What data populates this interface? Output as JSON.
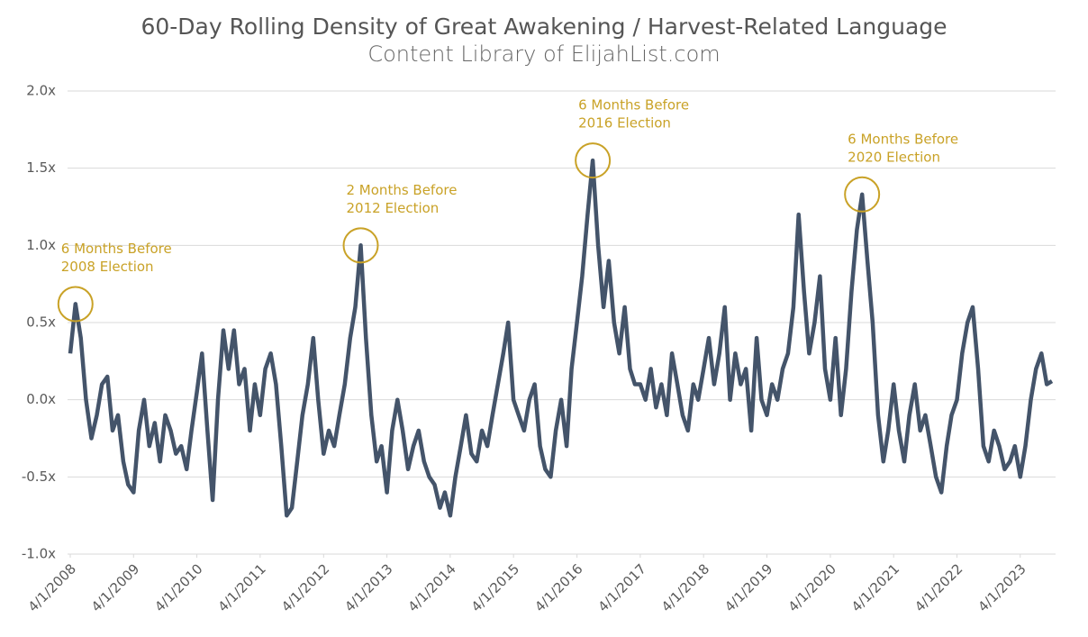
{
  "chart_data": {
    "type": "line",
    "title": "60-Day Rolling Density of Great Awakening / Harvest-Related Language",
    "subtitle": "Content Library of ElijahList.com",
    "color": "#44546a",
    "annotation_color": "#c9a227",
    "grid": true,
    "x": [
      "4/1/2008",
      "5/1/2008",
      "6/1/2008",
      "7/1/2008",
      "8/1/2008",
      "9/1/2008",
      "10/1/2008",
      "11/1/2008",
      "12/1/2008",
      "1/1/2009",
      "2/1/2009",
      "3/1/2009",
      "4/1/2009",
      "5/1/2009",
      "6/1/2009",
      "7/1/2009",
      "8/1/2009",
      "9/1/2009",
      "10/1/2009",
      "11/1/2009",
      "12/1/2009",
      "1/1/2010",
      "2/1/2010",
      "3/1/2010",
      "4/1/2010",
      "5/1/2010",
      "6/1/2010",
      "7/1/2010",
      "8/1/2010",
      "9/1/2010",
      "10/1/2010",
      "11/1/2010",
      "12/1/2010",
      "1/1/2011",
      "2/1/2011",
      "3/1/2011",
      "4/1/2011",
      "5/1/2011",
      "6/1/2011",
      "7/1/2011",
      "8/1/2011",
      "9/1/2011",
      "10/1/2011",
      "11/1/2011",
      "12/1/2011",
      "1/1/2012",
      "2/1/2012",
      "3/1/2012",
      "4/1/2012",
      "5/1/2012",
      "6/1/2012",
      "7/1/2012",
      "8/1/2012",
      "9/1/2012",
      "10/1/2012",
      "11/1/2012",
      "12/1/2012",
      "1/1/2013",
      "2/1/2013",
      "3/1/2013",
      "4/1/2013",
      "5/1/2013",
      "6/1/2013",
      "7/1/2013",
      "8/1/2013",
      "9/1/2013",
      "10/1/2013",
      "11/1/2013",
      "12/1/2013",
      "1/1/2014",
      "2/1/2014",
      "3/1/2014",
      "4/1/2014",
      "5/1/2014",
      "6/1/2014",
      "7/1/2014",
      "8/1/2014",
      "9/1/2014",
      "10/1/2014",
      "11/1/2014",
      "12/1/2014",
      "1/1/2015",
      "2/1/2015",
      "3/1/2015",
      "4/1/2015",
      "5/1/2015",
      "6/1/2015",
      "7/1/2015",
      "8/1/2015",
      "9/1/2015",
      "10/1/2015",
      "11/1/2015",
      "12/1/2015",
      "1/1/2016",
      "2/1/2016",
      "3/1/2016",
      "4/1/2016",
      "5/1/2016",
      "6/1/2016",
      "7/1/2016",
      "8/1/2016",
      "9/1/2016",
      "10/1/2016",
      "11/1/2016",
      "12/1/2016",
      "1/1/2017",
      "2/1/2017",
      "3/1/2017",
      "4/1/2017",
      "5/1/2017",
      "6/1/2017",
      "7/1/2017",
      "8/1/2017",
      "9/1/2017",
      "10/1/2017",
      "11/1/2017",
      "12/1/2017",
      "1/1/2018",
      "2/1/2018",
      "3/1/2018",
      "4/1/2018",
      "5/1/2018",
      "6/1/2018",
      "7/1/2018",
      "8/1/2018",
      "9/1/2018",
      "10/1/2018",
      "11/1/2018",
      "12/1/2018",
      "1/1/2019",
      "2/1/2019",
      "3/1/2019",
      "4/1/2019",
      "5/1/2019",
      "6/1/2019",
      "7/1/2019",
      "8/1/2019",
      "9/1/2019",
      "10/1/2019",
      "11/1/2019",
      "12/1/2019",
      "1/1/2020",
      "2/1/2020",
      "3/1/2020",
      "4/1/2020",
      "5/1/2020",
      "6/1/2020",
      "7/1/2020",
      "8/1/2020",
      "9/1/2020",
      "10/1/2020",
      "11/1/2020",
      "12/1/2020",
      "1/1/2021",
      "2/1/2021",
      "3/1/2021",
      "4/1/2021",
      "5/1/2021",
      "6/1/2021",
      "7/1/2021",
      "8/1/2021",
      "9/1/2021",
      "10/1/2021",
      "11/1/2021",
      "12/1/2021",
      "1/1/2022",
      "2/1/2022",
      "3/1/2022",
      "4/1/2022",
      "5/1/2022",
      "6/1/2022",
      "7/1/2022",
      "8/1/2022",
      "9/1/2022",
      "10/1/2022",
      "11/1/2022",
      "12/1/2022",
      "1/1/2023",
      "2/1/2023",
      "3/1/2023",
      "4/1/2023",
      "5/1/2023",
      "6/1/2023",
      "7/1/2023",
      "8/1/2023",
      "9/1/2023",
      "10/1/2023"
    ],
    "values": [
      0.3,
      0.62,
      0.4,
      0.0,
      -0.25,
      -0.1,
      0.1,
      0.15,
      -0.2,
      -0.1,
      -0.4,
      -0.55,
      -0.6,
      -0.2,
      0.0,
      -0.3,
      -0.15,
      -0.4,
      -0.1,
      -0.2,
      -0.35,
      -0.3,
      -0.45,
      -0.2,
      0.05,
      0.3,
      -0.2,
      -0.65,
      0.0,
      0.45,
      0.2,
      0.45,
      0.1,
      0.2,
      -0.2,
      0.1,
      -0.1,
      0.2,
      0.3,
      0.1,
      -0.3,
      -0.75,
      -0.7,
      -0.4,
      -0.1,
      0.1,
      0.4,
      0.0,
      -0.35,
      -0.2,
      -0.3,
      -0.1,
      0.1,
      0.4,
      0.6,
      1.0,
      0.4,
      -0.1,
      -0.4,
      -0.3,
      -0.6,
      -0.2,
      0.0,
      -0.2,
      -0.45,
      -0.3,
      -0.2,
      -0.4,
      -0.5,
      -0.55,
      -0.7,
      -0.6,
      -0.75,
      -0.5,
      -0.3,
      -0.1,
      -0.35,
      -0.4,
      -0.2,
      -0.3,
      -0.1,
      0.1,
      0.3,
      0.5,
      0.0,
      -0.1,
      -0.2,
      0.0,
      0.1,
      -0.3,
      -0.45,
      -0.5,
      -0.2,
      0.0,
      -0.3,
      0.2,
      0.5,
      0.8,
      1.2,
      1.55,
      1.0,
      0.6,
      0.9,
      0.5,
      0.3,
      0.6,
      0.2,
      0.1,
      0.1,
      0.0,
      0.2,
      -0.05,
      0.1,
      -0.1,
      0.3,
      0.1,
      -0.1,
      -0.2,
      0.1,
      0.0,
      0.2,
      0.4,
      0.1,
      0.3,
      0.6,
      0.0,
      0.3,
      0.1,
      0.2,
      -0.2,
      0.4,
      0.0,
      -0.1,
      0.1,
      0.0,
      0.2,
      0.3,
      0.6,
      1.2,
      0.7,
      0.3,
      0.5,
      0.8,
      0.2,
      0.0,
      0.4,
      -0.1,
      0.2,
      0.7,
      1.1,
      1.33,
      0.9,
      0.5,
      -0.1,
      -0.4,
      -0.2,
      0.1,
      -0.2,
      -0.4,
      -0.1,
      0.1,
      -0.2,
      -0.1,
      -0.3,
      -0.5,
      -0.6,
      -0.3,
      -0.1,
      0.0,
      0.3,
      0.5,
      0.6,
      0.2,
      -0.3,
      -0.4,
      -0.2,
      -0.3,
      -0.45,
      -0.4,
      -0.3,
      -0.5,
      -0.3,
      0.0,
      0.2,
      0.3,
      0.1,
      0.12
    ],
    "xlim": [
      "4/1/2008",
      "10/1/2023"
    ],
    "xticks": [
      "4/1/2008",
      "4/1/2009",
      "4/1/2010",
      "4/1/2011",
      "4/1/2012",
      "4/1/2013",
      "4/1/2014",
      "4/1/2015",
      "4/1/2016",
      "4/1/2017",
      "4/1/2018",
      "4/1/2019",
      "4/1/2020",
      "4/1/2021",
      "4/1/2022",
      "4/1/2023"
    ],
    "ylim": [
      -1,
      2
    ],
    "yticks": [
      {
        "value": 2,
        "label": "2.0x"
      },
      {
        "value": 1.5,
        "label": "1.5x"
      },
      {
        "value": 1,
        "label": "1.0x"
      },
      {
        "value": 0.5,
        "label": "0.5x"
      },
      {
        "value": 0,
        "label": "0.0x"
      },
      {
        "value": -0.5,
        "label": "-0.5x"
      },
      {
        "value": -1,
        "label": "-1.0x"
      }
    ],
    "annotations": [
      {
        "text": [
          "6 Months Before",
          "2008 Election"
        ],
        "x": "5/1/2008",
        "y": 0.62
      },
      {
        "text": [
          "2 Months Before",
          "2012 Election"
        ],
        "x": "11/1/2012",
        "y": 1.0
      },
      {
        "text": [
          "6 Months Before",
          "2016 Election"
        ],
        "x": "7/1/2016",
        "y": 1.55
      },
      {
        "text": [
          "6 Months Before",
          "2020 Election"
        ],
        "x": "10/1/2020",
        "y": 1.33
      }
    ]
  }
}
